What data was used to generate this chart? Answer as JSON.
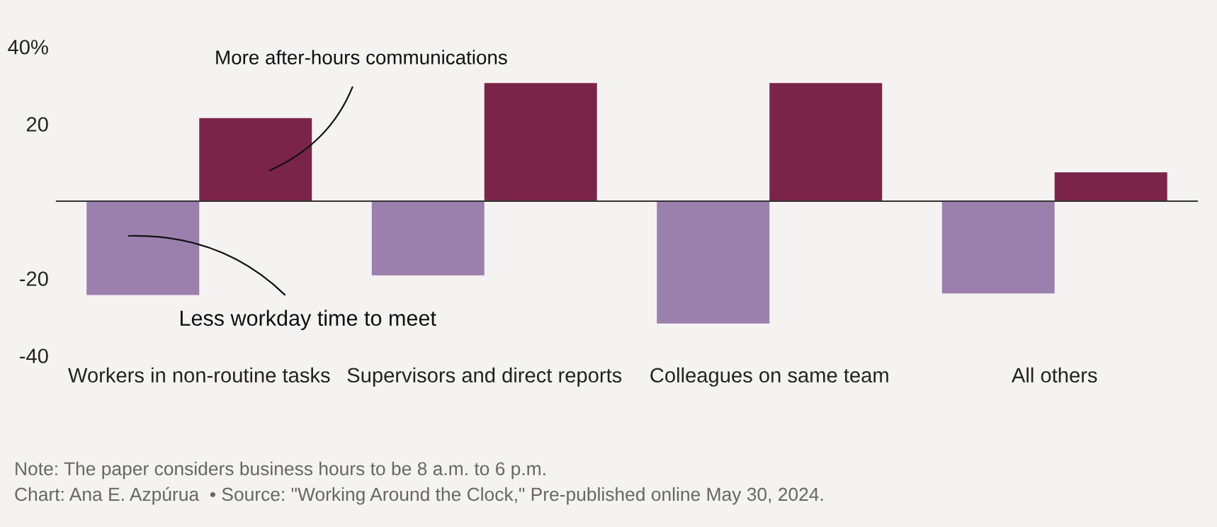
{
  "chart_data": {
    "type": "bar",
    "categories": [
      "Workers in non-routine tasks",
      "Supervisors and direct reports",
      "Colleagues on same team",
      "All others"
    ],
    "series": [
      {
        "name": "Less workday time to meet",
        "color": "#9b80ae",
        "values": [
          -24.3,
          -19.2,
          -31.7,
          -23.9
        ]
      },
      {
        "name": "More after-hours communications",
        "color": "#7a2449",
        "values": [
          21.5,
          30.6,
          30.6,
          7.5
        ]
      }
    ],
    "ylim": [
      -40,
      40
    ],
    "yticks": [
      {
        "value": -40,
        "label": "-40"
      },
      {
        "value": -20,
        "label": "-20"
      },
      {
        "value": 0,
        "label": null
      },
      {
        "value": 20,
        "label": "20"
      },
      {
        "value": 40,
        "label": "40%"
      }
    ],
    "legend": false,
    "annotations": [
      "Note: The paper considers business hours to be 8 a.m. to 6 p.m.",
      "Chart: Ana E. Azpúrua  • Source: \"Working Around the Clock,\" Pre-published online May 30, 2024."
    ]
  }
}
